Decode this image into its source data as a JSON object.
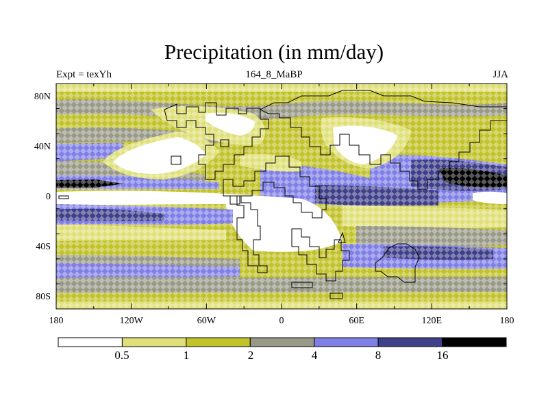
{
  "title": "Precipitation (in mm/day)",
  "subtitle_left": "Expt = texYh",
  "subtitle_center": "164_8_MaBP",
  "subtitle_right": "JJA",
  "axes": {
    "x_ticks": [
      "180",
      "120W",
      "60W",
      "0",
      "60E",
      "120E",
      "180"
    ],
    "y_ticks": [
      "80N",
      "40N",
      "0",
      "40S",
      "80S"
    ]
  },
  "colorbar": {
    "labels": [
      "0.5",
      "1",
      "2",
      "4",
      "8",
      "16"
    ],
    "colors": [
      "#ffffff",
      "#e0e07a",
      "#c2c22a",
      "#999988",
      "#7f7fe6",
      "#3f3f8a",
      "#000000"
    ]
  }
}
